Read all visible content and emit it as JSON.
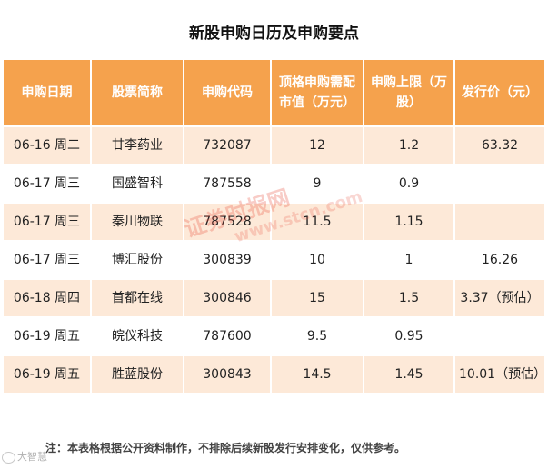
{
  "title": "新股申购日历及申购要点",
  "headers": [
    "申购日期",
    "股票简称",
    "申购代码",
    "顶格申购需配市值（万元）",
    "申购上限（万股）",
    "发行价（元）"
  ],
  "rows": [
    [
      "06-16 周二",
      "甘李药业",
      "732087",
      "12",
      "1.2",
      "63.32"
    ],
    [
      "06-17 周三",
      "国盛智科",
      "787558",
      "9",
      "0.9",
      ""
    ],
    [
      "06-17 周三",
      "秦川物联",
      "787528",
      "11.5",
      "1.15",
      ""
    ],
    [
      "06-17 周三",
      "博汇股份",
      "300839",
      "10",
      "1",
      "16.26"
    ],
    [
      "06-18 周四",
      "首都在线",
      "300846",
      "15",
      "1.5",
      "3.37（预估）"
    ],
    [
      "06-19 周五",
      "皖仪科技",
      "787600",
      "9.5",
      "0.95",
      ""
    ],
    [
      "06-19 周五",
      "胜蓝股份",
      "300843",
      "14.5",
      "1.45",
      "10.01（预估）"
    ]
  ],
  "footnote": "注：本表格根据公开资料制作，不排除后续新股发行安排变化，仅供参考。",
  "watermark": {
    "text": "证券时报网",
    "url": "www.stcn.com"
  },
  "source_logo": "大智慧",
  "colors": {
    "header_bg": "#f5a24d",
    "stripe_bg": "#fde9d8",
    "watermark": "#e84d3b"
  }
}
